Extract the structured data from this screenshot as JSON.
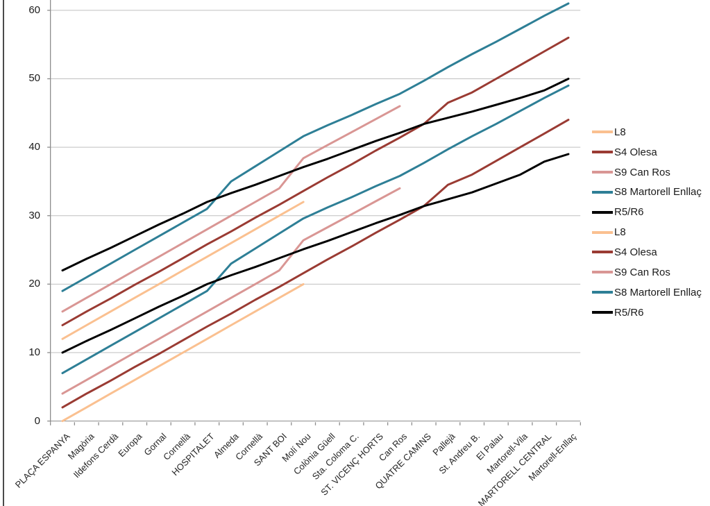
{
  "chart_data": {
    "type": "line",
    "title": "",
    "xlabel": "",
    "ylabel": "",
    "legend_position": "right",
    "grid": true,
    "categories": [
      "PLAÇA ESPANYA",
      "Magòria",
      "Ildefons Cerdà",
      "Europa",
      "Gornal",
      "Cornellà",
      "HOSPITALET",
      "Almeda",
      "Cornellà",
      "SANT BOI",
      "Molí Nou",
      "Colònia Güell",
      "Sta. Coloma C.",
      "ST. VICENÇ HORTS",
      "Can Ros",
      "QUATRE CAMINS",
      "Pallejà",
      "St. Andreu B.",
      "El Palau",
      "Martorell-Vila",
      "MARTORELL CENTRAL",
      "Martorell-Enllaç"
    ],
    "y_axis": {
      "min": 0,
      "max": 60,
      "step": 10,
      "tick_labels": [
        "0",
        "10",
        "20",
        "30",
        "40",
        "50",
        "60"
      ]
    },
    "series": [
      {
        "name": "L8",
        "color": "#FAC090",
        "group": "upper",
        "values": [
          12,
          14,
          16,
          18,
          20,
          22,
          24,
          26,
          28,
          30,
          32,
          null,
          null,
          null,
          null,
          null,
          null,
          null,
          null,
          null,
          null,
          null
        ]
      },
      {
        "name": "S4 Olesa",
        "color": "#9A3B33",
        "group": "upper",
        "values": [
          14,
          16,
          17.9,
          19.9,
          21.8,
          23.8,
          25.8,
          27.7,
          29.7,
          31.6,
          33.6,
          35.6,
          37.5,
          39.5,
          41.4,
          43.4,
          46.5,
          48,
          50,
          52,
          54,
          56
        ]
      },
      {
        "name": "S9 Can Ros",
        "color": "#D99694",
        "group": "upper",
        "values": [
          16,
          18,
          20,
          22,
          24,
          26,
          28,
          30,
          32,
          34,
          38.4,
          40.3,
          42.2,
          44.1,
          46,
          null,
          null,
          null,
          null,
          null,
          null,
          null
        ]
      },
      {
        "name": "S8 Martorell Enllaç",
        "color": "#2E7F96",
        "group": "upper",
        "values": [
          19,
          21,
          23,
          25,
          27,
          29,
          31,
          35,
          37.2,
          39.4,
          41.6,
          43.2,
          44.7,
          46.3,
          47.8,
          49.7,
          51.7,
          53.6,
          55.4,
          57.3,
          59.2,
          61
        ]
      },
      {
        "name": "R5/R6",
        "color": "#000000",
        "group": "upper",
        "values": [
          22,
          23.7,
          25.3,
          27,
          28.7,
          30.3,
          32,
          33.3,
          34.5,
          35.8,
          37.1,
          38.3,
          39.6,
          40.9,
          42.1,
          43.4,
          44.3,
          45.2,
          46.2,
          47.2,
          48.3,
          50
        ]
      },
      {
        "name": "L8",
        "color": "#FAC090",
        "group": "lower",
        "values": [
          0,
          2,
          4,
          6,
          8,
          10,
          12,
          14,
          16,
          18,
          20,
          null,
          null,
          null,
          null,
          null,
          null,
          null,
          null,
          null,
          null,
          null
        ]
      },
      {
        "name": "S4 Olesa",
        "color": "#9A3B33",
        "group": "lower",
        "values": [
          2,
          4,
          5.9,
          7.9,
          9.8,
          11.8,
          13.8,
          15.7,
          17.7,
          19.6,
          21.6,
          23.6,
          25.5,
          27.5,
          29.4,
          31.4,
          34.5,
          36,
          38,
          40,
          42,
          44
        ]
      },
      {
        "name": "S9 Can Ros",
        "color": "#D99694",
        "group": "lower",
        "values": [
          4,
          6,
          8,
          10,
          12,
          14,
          16,
          18,
          20,
          22,
          26.4,
          28.3,
          30.2,
          32.1,
          34,
          null,
          null,
          null,
          null,
          null,
          null,
          null
        ]
      },
      {
        "name": "S8 Martorell Enllaç",
        "color": "#2E7F96",
        "group": "lower",
        "values": [
          7,
          9,
          11,
          13,
          15,
          17,
          19,
          23,
          25.2,
          27.4,
          29.6,
          31.2,
          32.7,
          34.3,
          35.8,
          37.7,
          39.7,
          41.6,
          43.4,
          45.3,
          47.2,
          49
        ]
      },
      {
        "name": "R5/R6",
        "color": "#000000",
        "group": "lower",
        "values": [
          10,
          11.7,
          13.3,
          15,
          16.7,
          18.3,
          20,
          21.3,
          22.5,
          23.8,
          25.1,
          26.3,
          27.6,
          28.9,
          30.1,
          31.4,
          32.4,
          33.4,
          34.7,
          36,
          37.9,
          39
        ]
      }
    ]
  }
}
